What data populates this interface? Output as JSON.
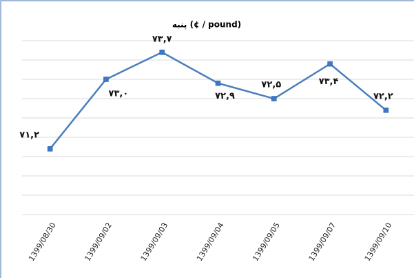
{
  "chart_data": {
    "type": "line",
    "title": "پنبه (¢ / pound)",
    "categories": [
      "1399/08/30",
      "1399/09/02",
      "1399/09/03",
      "1399/09/04",
      "1399/09/05",
      "1399/09/07",
      "1399/09/10"
    ],
    "series": [
      {
        "name": "پنبه",
        "color": "#4a7ebb",
        "values": [
          71.2,
          73.0,
          73.7,
          72.9,
          72.5,
          73.4,
          72.2
        ],
        "value_labels": [
          "۷۱,۲",
          "۷۳,۰",
          "۷۳,۷",
          "۷۲,۹",
          "۷۲,۵",
          "۷۳,۴",
          "۷۲,۲"
        ]
      }
    ],
    "ylim": [
      69.5,
      74.0
    ],
    "yticks": [
      69.5,
      70,
      70.5,
      71,
      71.5,
      72,
      72.5,
      73,
      73.5,
      74
    ],
    "grid": true
  }
}
